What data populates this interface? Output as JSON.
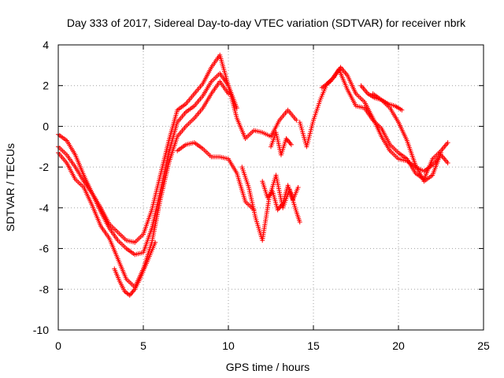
{
  "chart_data": {
    "type": "scatter",
    "title": "Day 333 of 2017, Sidereal Day-to-day VTEC variation (SDTVAR) for receiver nbrk",
    "xlabel": "GPS time / hours",
    "ylabel": "SDTVAR / TECUs",
    "xlim": [
      0,
      25
    ],
    "ylim": [
      -10,
      4
    ],
    "xticks": [
      0,
      5,
      10,
      15,
      20,
      25
    ],
    "yticks": [
      -10,
      -8,
      -6,
      -4,
      -2,
      0,
      2,
      4
    ],
    "grid": true,
    "marker": "+",
    "series": [
      {
        "name": "SDTVAR",
        "color": "#ff0000",
        "segments": [
          {
            "x": [
              0,
              0.5,
              1.0,
              1.5,
              2.0,
              2.5,
              3.0,
              3.5,
              4.0,
              4.5,
              5.0,
              5.5,
              6.0,
              6.5,
              7.0,
              7.5,
              8.0,
              8.5,
              9.0,
              9.5,
              10.0,
              10.5,
              11.0,
              11.5,
              12.0,
              12.5,
              13.0,
              13.5,
              14.0
            ],
            "y": [
              -1.0,
              -1.4,
              -2.0,
              -2.7,
              -3.3,
              -4.0,
              -4.8,
              -5.2,
              -5.6,
              -5.7,
              -5.3,
              -4.1,
              -2.4,
              -0.7,
              0.8,
              1.1,
              1.6,
              2.1,
              2.9,
              3.5,
              2.0,
              0.4,
              -0.6,
              -0.2,
              -0.3,
              -0.5,
              0.3,
              0.8,
              0.3
            ]
          },
          {
            "x": [
              0,
              0.5,
              1.0,
              1.5,
              2.0,
              2.5,
              3.0,
              3.5,
              4.0,
              4.5,
              5.0,
              5.5,
              6.0,
              6.5,
              7.0,
              7.5,
              8.0,
              8.5,
              9.0,
              9.5,
              10.0,
              10.5
            ],
            "y": [
              -0.4,
              -0.7,
              -1.4,
              -2.4,
              -3.3,
              -4.2,
              -5.0,
              -5.6,
              -6.0,
              -6.3,
              -6.2,
              -5.0,
              -3.2,
              -1.3,
              0.2,
              0.7,
              1.0,
              1.5,
              2.2,
              2.6,
              2.0,
              0.9
            ]
          },
          {
            "x": [
              0,
              0.5,
              1.0,
              1.5,
              2.0,
              2.5,
              3.0,
              3.5,
              4.0,
              4.5,
              5.0,
              5.5,
              6.0,
              6.5,
              7.0,
              7.5,
              8.0,
              8.5,
              9.0,
              9.5,
              10.0
            ],
            "y": [
              -1.3,
              -1.8,
              -2.6,
              -3.0,
              -3.9,
              -4.9,
              -5.5,
              -6.5,
              -7.5,
              -7.9,
              -7.0,
              -5.7,
              -3.6,
              -1.8,
              -0.5,
              0.0,
              0.4,
              0.9,
              1.6,
              2.2,
              1.6
            ]
          },
          {
            "x": [
              3.3,
              3.6,
              3.9,
              4.2,
              4.5,
              4.8,
              5.1,
              5.4,
              5.7
            ],
            "y": [
              -7.0,
              -7.6,
              -8.1,
              -8.3,
              -8.0,
              -7.5,
              -6.9,
              -6.3,
              -5.7
            ]
          },
          {
            "x": [
              7.0,
              7.5,
              8.0,
              8.5,
              9.0,
              9.5,
              10.0,
              10.5,
              11.0,
              11.5
            ],
            "y": [
              -1.2,
              -0.9,
              -0.8,
              -1.1,
              -1.5,
              -1.5,
              -1.6,
              -2.3,
              -3.7,
              -4.1
            ]
          },
          {
            "x": [
              10.8,
              11.2,
              11.6,
              12.0,
              12.4,
              12.8,
              13.2,
              13.6,
              14.0,
              14.2
            ],
            "y": [
              -2.0,
              -3.0,
              -4.5,
              -5.6,
              -3.5,
              -2.4,
              -4.0,
              -3.1,
              -4.2,
              -4.7
            ]
          },
          {
            "x": [
              12.0,
              12.3,
              12.6,
              12.9,
              13.2,
              13.5,
              13.8,
              14.1
            ],
            "y": [
              -2.7,
              -3.5,
              -3.2,
              -4.1,
              -3.8,
              -2.9,
              -3.6,
              -3.0
            ]
          },
          {
            "x": [
              12.5,
              12.8,
              13.1,
              13.4,
              13.7
            ],
            "y": [
              -1.0,
              -0.3,
              -1.4,
              -0.6,
              -0.9
            ]
          },
          {
            "x": [
              14.2,
              14.6,
              15.0,
              15.4,
              15.8,
              16.2,
              16.6,
              17.0,
              17.5,
              18.0,
              18.5,
              19.0,
              19.5,
              20.0,
              20.5,
              21.0,
              21.5,
              22.0,
              22.5,
              22.9
            ],
            "y": [
              0.2,
              -1.0,
              0.3,
              1.3,
              2.1,
              2.4,
              2.9,
              2.5,
              1.6,
              1.2,
              0.4,
              -0.5,
              -1.2,
              -1.6,
              -1.7,
              -2.0,
              -2.2,
              -1.9,
              -1.4,
              -1.8
            ]
          },
          {
            "x": [
              15.5,
              16.0,
              16.5,
              17.0,
              17.5,
              18.0,
              18.5,
              19.0,
              19.5,
              20.0,
              20.5,
              21.0,
              21.5,
              22.0,
              22.5,
              22.9
            ],
            "y": [
              1.9,
              2.2,
              2.8,
              1.8,
              1.0,
              0.9,
              0.3,
              -0.1,
              -0.9,
              -1.3,
              -1.6,
              -2.3,
              -2.6,
              -1.6,
              -1.2,
              -0.8
            ]
          },
          {
            "x": [
              18.5,
              19.0,
              19.5,
              20.0,
              20.5,
              21.0,
              21.5,
              22.0,
              22.5
            ],
            "y": [
              1.6,
              1.3,
              0.9,
              0.2,
              -0.7,
              -1.9,
              -2.7,
              -2.4,
              -1.3
            ]
          },
          {
            "x": [
              17.8,
              18.2,
              18.6,
              19.0,
              19.4,
              19.8,
              20.2
            ],
            "y": [
              2.0,
              1.6,
              1.4,
              1.3,
              1.1,
              1.0,
              0.8
            ]
          }
        ]
      }
    ]
  }
}
